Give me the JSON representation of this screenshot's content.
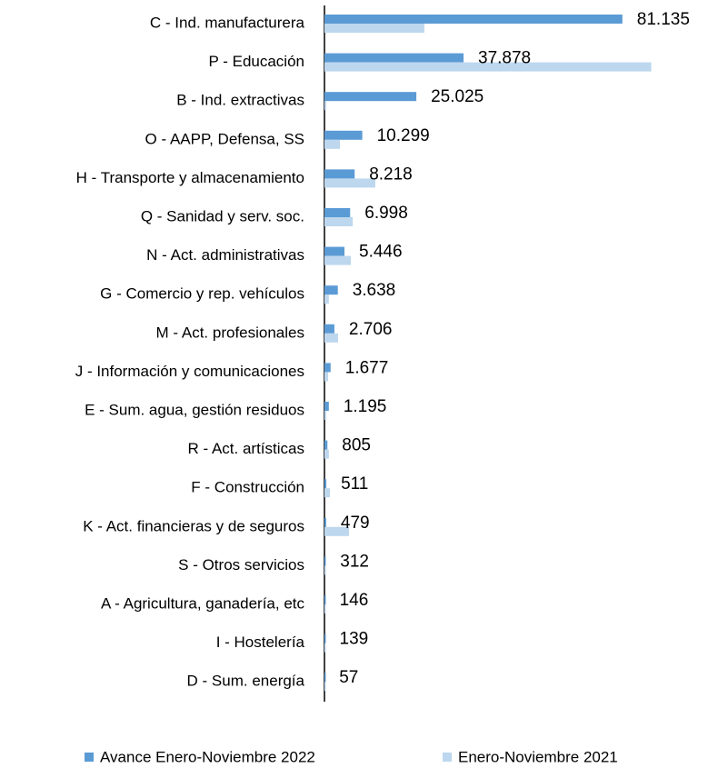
{
  "chart_data": {
    "type": "bar",
    "orientation": "horizontal",
    "categories": [
      "C - Ind. manufacturera",
      "P - Educación",
      "B - Ind. extractivas",
      "O - AAPP, Defensa, SS",
      "H - Transporte y almacenamiento",
      "Q - Sanidad y serv. soc.",
      "N - Act. administrativas",
      "G - Comercio y rep. vehículos",
      "M - Act. profesionales",
      "J - Información y comunicaciones",
      "E - Sum. agua, gestión residuos",
      "R - Act. artísticas",
      "F - Construcción",
      "K - Act. financieras y de seguros",
      "S - Otros servicios",
      "A - Agricultura, ganadería, etc",
      "I - Hostelería",
      "D - Sum. energía"
    ],
    "series": [
      {
        "name": "Avance Enero-Noviembre 2022",
        "color": "#5b9bd5",
        "values": [
          81135,
          37878,
          25025,
          10299,
          8218,
          6998,
          5446,
          3638,
          2706,
          1677,
          1195,
          805,
          511,
          479,
          312,
          146,
          139,
          57
        ],
        "value_labels": [
          "81.135",
          "37.878",
          "25.025",
          "10.299",
          "8.218",
          "6.998",
          "5.446",
          "3.638",
          "2.706",
          "1.677",
          "1.195",
          "805",
          "511",
          "479",
          "312",
          "146",
          "139",
          "57"
        ]
      },
      {
        "name": "Enero-Noviembre 2021",
        "color": "#bdd7ee",
        "values": [
          27200,
          89000,
          500,
          4200,
          13850,
          7700,
          7200,
          1200,
          3700,
          1000,
          500,
          1200,
          1500,
          6700,
          400,
          300,
          300,
          150
        ]
      }
    ],
    "xlim": [
      0,
      100000
    ],
    "legend": "bottom"
  }
}
